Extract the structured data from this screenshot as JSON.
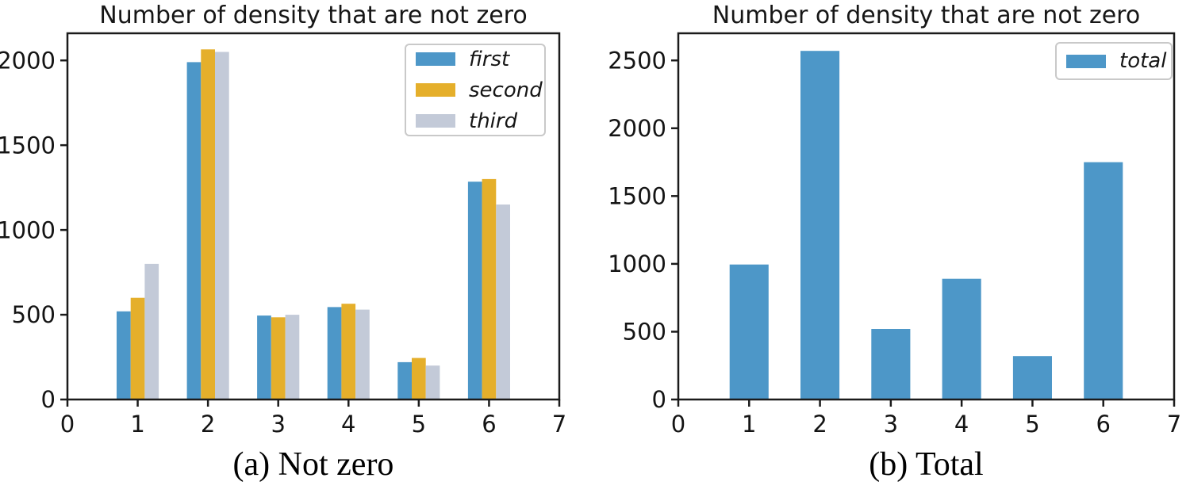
{
  "chart_data": [
    {
      "type": "bar",
      "title": "Number of density that are not zero",
      "caption": "(a) Not zero",
      "categories": [
        1,
        2,
        3,
        4,
        5,
        6
      ],
      "series": [
        {
          "name": "first",
          "color": "#4D97C8",
          "values": [
            520,
            1990,
            495,
            545,
            220,
            1285
          ]
        },
        {
          "name": "second",
          "color": "#E5AF2B",
          "values": [
            600,
            2065,
            485,
            565,
            245,
            1300
          ]
        },
        {
          "name": "third",
          "color": "#C3CAD8",
          "values": [
            800,
            2050,
            500,
            530,
            200,
            1150
          ]
        }
      ],
      "xlabel": "",
      "ylabel": "",
      "xlim": [
        0,
        7
      ],
      "ylim": [
        0,
        2160
      ],
      "xticks": [
        0,
        1,
        2,
        3,
        4,
        5,
        6,
        7
      ],
      "yticks": [
        0,
        500,
        1000,
        1500,
        2000
      ],
      "bar_width": 0.2,
      "grid": false,
      "legend_position": "upper right"
    },
    {
      "type": "bar",
      "title": "Number of density that are not zero",
      "caption": "(b) Total",
      "categories": [
        1,
        2,
        3,
        4,
        5,
        6
      ],
      "series": [
        {
          "name": "total",
          "color": "#4D97C8",
          "values": [
            995,
            2570,
            520,
            890,
            320,
            1750
          ]
        }
      ],
      "xlabel": "",
      "ylabel": "",
      "xlim": [
        0,
        7
      ],
      "ylim": [
        0,
        2700
      ],
      "xticks": [
        0,
        1,
        2,
        3,
        4,
        5,
        6,
        7
      ],
      "yticks": [
        0,
        500,
        1000,
        1500,
        2000,
        2500
      ],
      "bar_width": 0.55,
      "grid": false,
      "legend_position": "upper right"
    }
  ],
  "style": {
    "spine_color": "#1b1b1b",
    "tick_label_size": 29,
    "axis_background": "#ffffff"
  }
}
